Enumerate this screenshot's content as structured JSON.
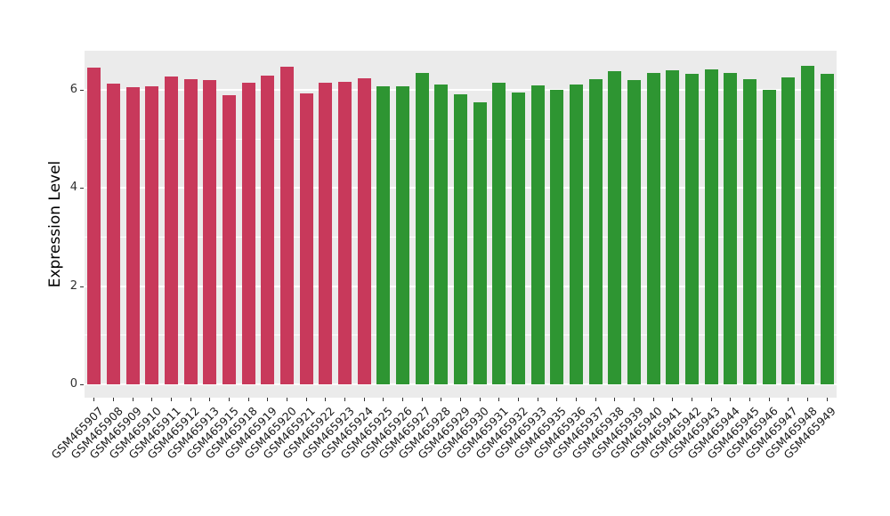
{
  "chart_data": {
    "type": "bar",
    "title": "",
    "xlabel": "",
    "ylabel": "Expression Level",
    "ylim": [
      0,
      6.8
    ],
    "yticks": [
      0,
      2,
      4,
      6
    ],
    "yticks_minor": [
      1,
      3,
      5
    ],
    "grid": "on",
    "legend": "none",
    "panel_background": "#EBEBEB",
    "grid_color": "#FFFFFF",
    "tick_color": "#333333",
    "categories": [
      "GSM465907",
      "GSM465908",
      "GSM465909",
      "GSM465910",
      "GSM465911",
      "GSM465912",
      "GSM465913",
      "GSM465915",
      "GSM465918",
      "GSM465919",
      "GSM465920",
      "GSM465921",
      "GSM465922",
      "GSM465923",
      "GSM465924",
      "GSM465925",
      "GSM465926",
      "GSM465927",
      "GSM465928",
      "GSM465929",
      "GSM465930",
      "GSM465931",
      "GSM465932",
      "GSM465933",
      "GSM465935",
      "GSM465936",
      "GSM465937",
      "GSM465938",
      "GSM465939",
      "GSM465940",
      "GSM465941",
      "GSM465942",
      "GSM465943",
      "GSM465944",
      "GSM465945",
      "GSM465946",
      "GSM465947",
      "GSM465948",
      "GSM465949"
    ],
    "values": [
      6.45,
      6.13,
      6.05,
      6.07,
      6.28,
      6.22,
      6.21,
      5.9,
      6.15,
      6.3,
      6.48,
      5.93,
      6.15,
      6.17,
      6.23,
      6.08,
      6.07,
      6.35,
      6.12,
      5.91,
      5.74,
      6.15,
      5.95,
      6.1,
      6.0,
      6.12,
      6.22,
      6.38,
      6.2,
      6.35,
      6.4,
      6.32,
      6.42,
      6.35,
      6.22,
      6.0,
      6.25,
      6.5,
      6.33
    ],
    "groups": [
      "red",
      "red",
      "red",
      "red",
      "red",
      "red",
      "red",
      "red",
      "red",
      "red",
      "red",
      "red",
      "red",
      "red",
      "red",
      "green",
      "green",
      "green",
      "green",
      "green",
      "green",
      "green",
      "green",
      "green",
      "green",
      "green",
      "green",
      "green",
      "green",
      "green",
      "green",
      "green",
      "green",
      "green",
      "green",
      "green",
      "green",
      "green",
      "green"
    ],
    "group_colors": {
      "red": "#C8395B",
      "green": "#2E9532"
    }
  }
}
